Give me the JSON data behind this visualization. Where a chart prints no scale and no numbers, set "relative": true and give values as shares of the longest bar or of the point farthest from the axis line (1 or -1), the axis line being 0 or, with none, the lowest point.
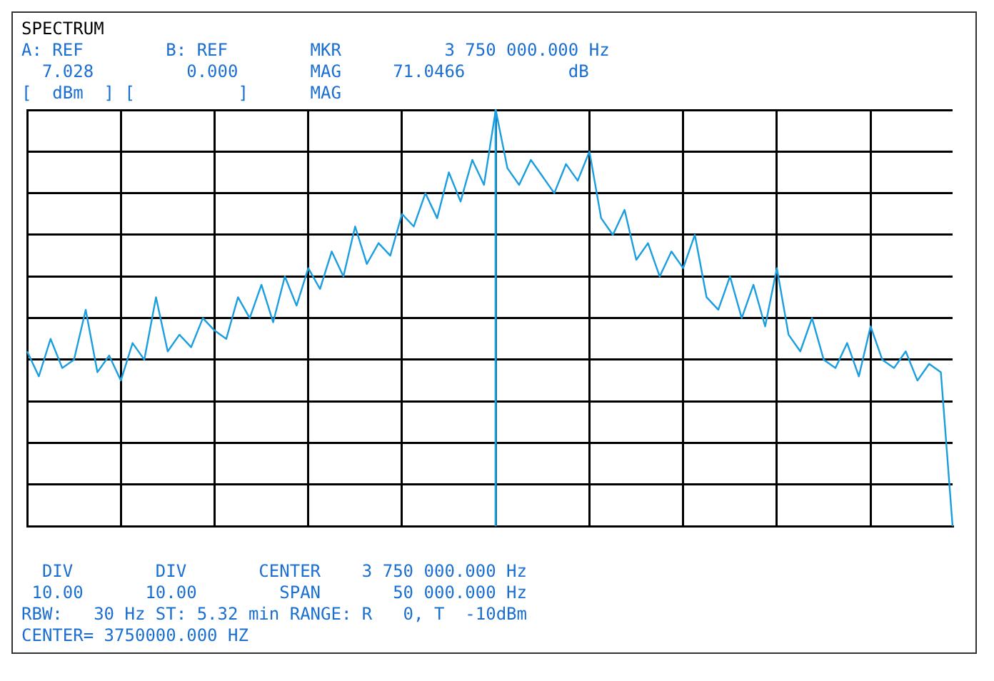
{
  "chart_data": {
    "type": "line",
    "title": "SPECTRUM",
    "annotations": [
      "A: REF        B: REF        MKR          3 750 000.000 Hz",
      "  7.028         0.000       MAG     71.0466          dB",
      "[  dBm  ] [          ]      MAG",
      "  DIV        DIV       CENTER    3 750 000.000 Hz",
      " 10.00      10.00        SPAN       50 000.000 Hz",
      "RBW:   30 Hz ST: 5.32 min RANGE: R   0, T  -10dBm",
      "CENTER= 3750000.000 HZ"
    ],
    "categories": [
      null,
      null,
      null,
      null,
      null,
      null,
      null,
      null,
      null,
      null,
      null,
      null,
      null,
      null,
      null,
      null,
      null,
      null,
      null,
      null,
      null,
      null,
      null,
      null,
      null,
      null,
      null,
      null,
      null,
      null,
      null,
      null,
      null,
      null,
      null,
      null,
      null,
      null,
      null,
      null,
      null,
      null,
      null,
      null,
      null,
      null,
      null,
      null,
      null,
      null,
      null,
      null,
      null,
      null,
      null,
      null,
      null,
      null,
      null,
      null,
      null,
      null,
      null,
      null,
      null,
      null,
      null,
      null,
      null,
      null,
      null,
      null,
      null,
      null,
      null,
      null,
      null,
      null,
      null,
      null
    ],
    "series": [
      {
        "color": "#1a9ee0",
        "values": [
          0.42,
          0.36,
          0.45,
          0.38,
          0.4,
          0.52,
          0.37,
          0.41,
          0.35,
          0.44,
          0.4,
          0.55,
          0.42,
          0.46,
          0.43,
          0.5,
          0.47,
          0.45,
          0.55,
          0.5,
          0.58,
          0.49,
          0.6,
          0.53,
          0.62,
          0.57,
          0.66,
          0.6,
          0.72,
          0.63,
          0.68,
          0.65,
          0.75,
          0.72,
          0.8,
          0.74,
          0.85,
          0.78,
          0.88,
          0.82,
          1.0,
          0.86,
          0.82,
          0.88,
          0.84,
          0.8,
          0.87,
          0.83,
          0.9,
          0.74,
          0.7,
          0.76,
          0.64,
          0.68,
          0.6,
          0.66,
          0.62,
          0.7,
          0.55,
          0.52,
          0.6,
          0.5,
          0.58,
          0.48,
          0.62,
          0.46,
          0.42,
          0.5,
          0.4,
          0.38,
          0.44,
          0.36,
          0.48,
          0.4,
          0.38,
          0.42,
          0.35,
          0.39,
          0.37,
          0.0
        ]
      }
    ],
    "relative": true,
    "grid": true,
    "legend": false,
    "marker": "none",
    "line_style": "solid"
  }
}
